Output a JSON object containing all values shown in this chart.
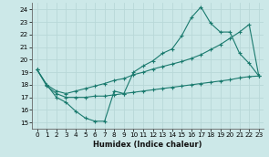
{
  "xlabel": "Humidex (Indice chaleur)",
  "background_color": "#cce8e8",
  "grid_color": "#b8d8d8",
  "line_color": "#1a7a6e",
  "xlim": [
    -0.5,
    23.5
  ],
  "ylim": [
    14.5,
    24.5
  ],
  "xticks": [
    0,
    1,
    2,
    3,
    4,
    5,
    6,
    7,
    8,
    9,
    10,
    11,
    12,
    13,
    14,
    15,
    16,
    17,
    18,
    19,
    20,
    21,
    22,
    23
  ],
  "yticks": [
    15,
    16,
    17,
    18,
    19,
    20,
    21,
    22,
    23,
    24
  ],
  "curve1_x": [
    0,
    1,
    2,
    3,
    4,
    5,
    6,
    7,
    8,
    9,
    10,
    11,
    12,
    13,
    14,
    15,
    16,
    17,
    18,
    19,
    20,
    21,
    22,
    23
  ],
  "curve1_y": [
    19.2,
    18.0,
    17.0,
    16.6,
    15.9,
    15.35,
    15.1,
    15.1,
    17.5,
    17.3,
    19.0,
    19.5,
    19.9,
    20.5,
    20.85,
    21.9,
    23.35,
    24.2,
    22.9,
    22.2,
    22.2,
    20.5,
    19.7,
    18.7
  ],
  "curve2_x": [
    0,
    1,
    2,
    3,
    4,
    5,
    6,
    7,
    8,
    9,
    10,
    11,
    12,
    13,
    14,
    15,
    16,
    17,
    18,
    19,
    20,
    21,
    22,
    23
  ],
  "curve2_y": [
    19.2,
    18.0,
    17.5,
    17.3,
    17.5,
    17.7,
    17.9,
    18.1,
    18.35,
    18.5,
    18.8,
    19.0,
    19.25,
    19.45,
    19.65,
    19.85,
    20.1,
    20.4,
    20.8,
    21.2,
    21.7,
    22.2,
    22.8,
    18.7
  ],
  "curve3_x": [
    0,
    1,
    2,
    3,
    4,
    5,
    6,
    7,
    8,
    9,
    10,
    11,
    12,
    13,
    14,
    15,
    16,
    17,
    18,
    19,
    20,
    21,
    22,
    23
  ],
  "curve3_y": [
    19.2,
    17.9,
    17.3,
    17.0,
    17.0,
    17.0,
    17.1,
    17.1,
    17.2,
    17.3,
    17.4,
    17.5,
    17.6,
    17.7,
    17.8,
    17.9,
    18.0,
    18.1,
    18.2,
    18.3,
    18.4,
    18.55,
    18.65,
    18.7
  ]
}
